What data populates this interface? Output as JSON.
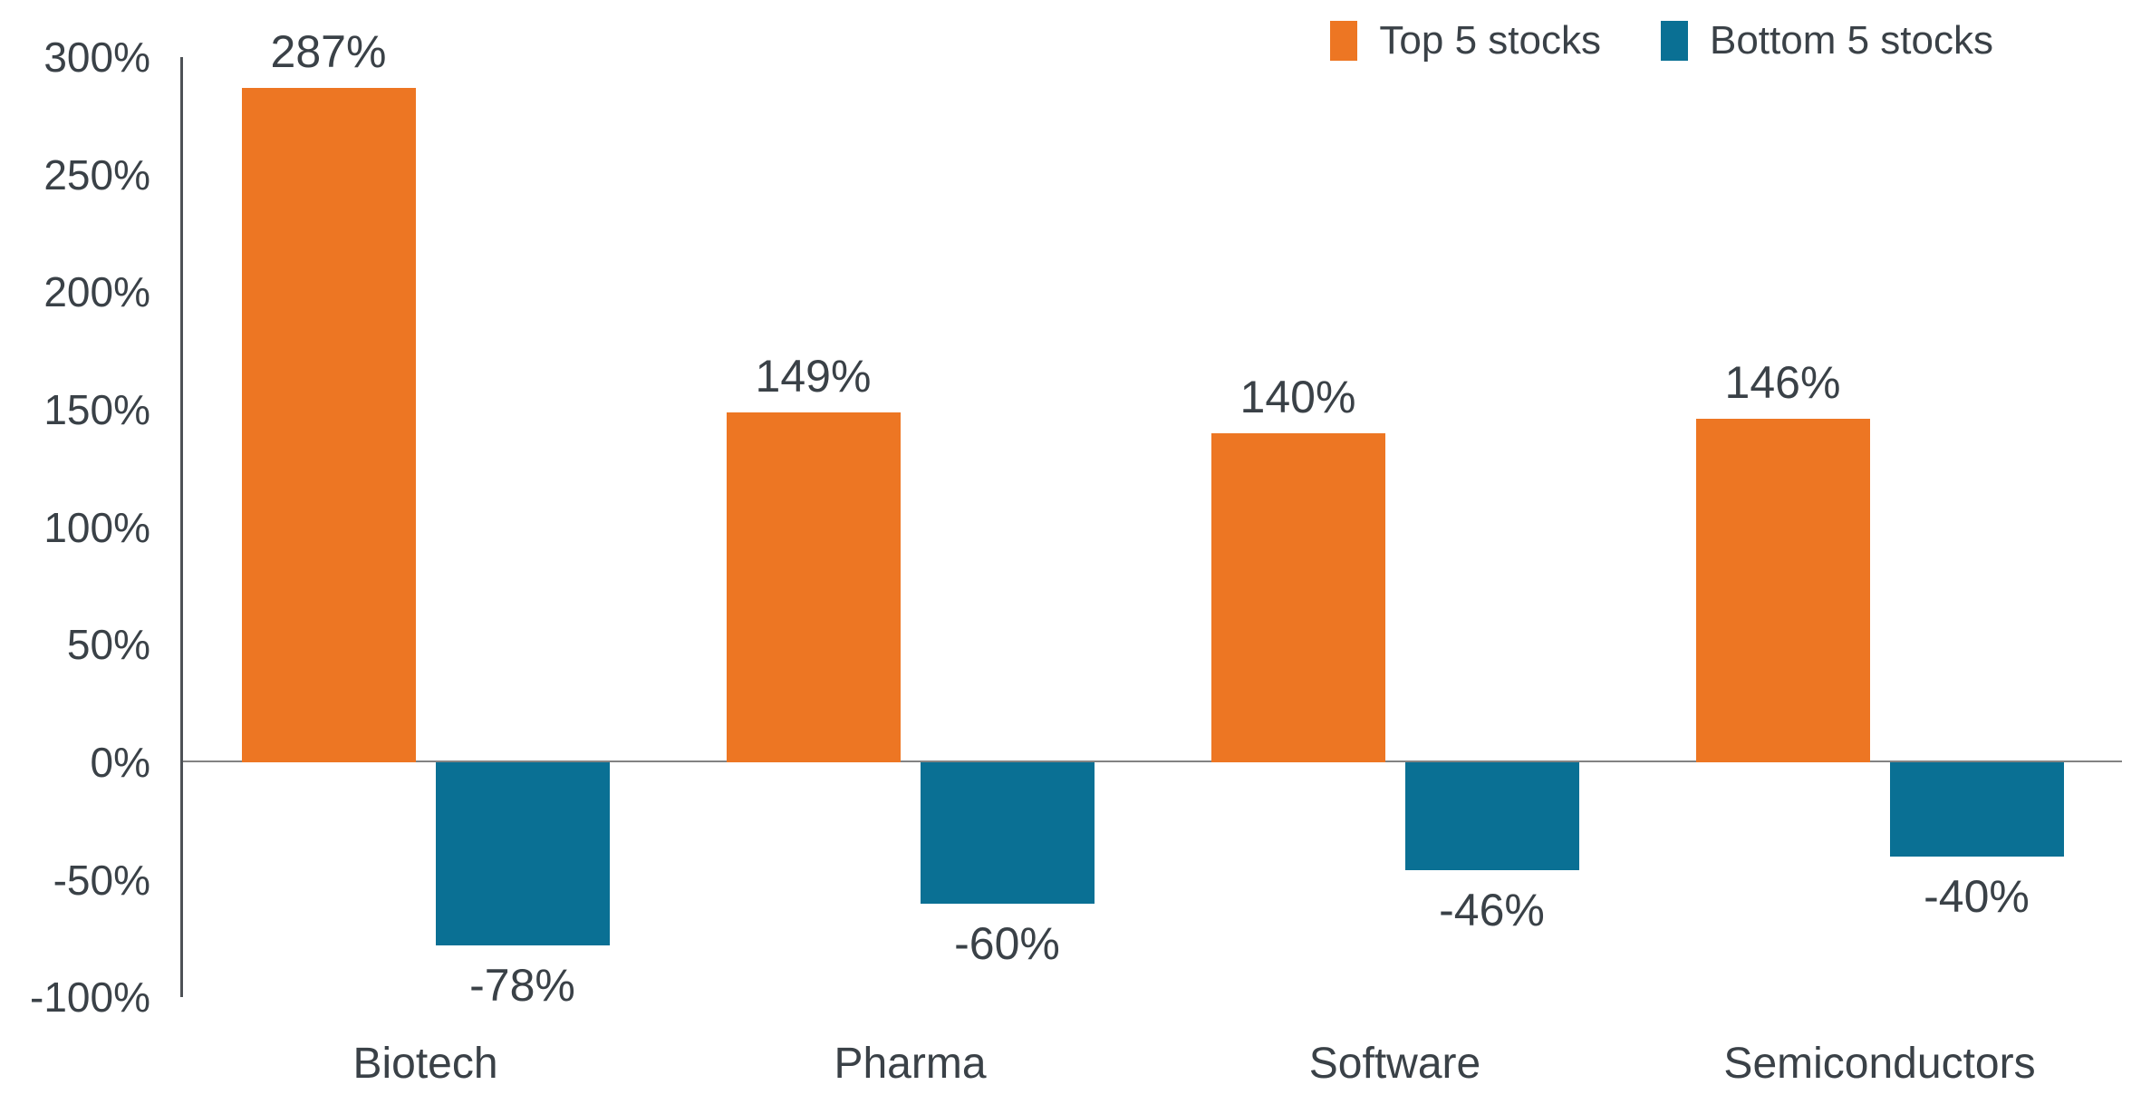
{
  "chart_data": {
    "type": "bar",
    "categories": [
      "Biotech",
      "Pharma",
      "Software",
      "Semiconductors"
    ],
    "series": [
      {
        "name": "Top 5 stocks",
        "color": "#ED7623",
        "values": [
          287,
          149,
          140,
          146
        ]
      },
      {
        "name": "Bottom 5 stocks",
        "color": "#0A7094",
        "values": [
          -78,
          -60,
          -46,
          -40
        ]
      }
    ],
    "data_labels": [
      "287%",
      "-78%",
      "149%",
      "-60%",
      "140%",
      "-46%",
      "146%",
      "-40%"
    ],
    "value_suffix": "%",
    "ylim": [
      -100,
      300
    ],
    "ytick_step": 50,
    "ytick_labels": [
      "-100%",
      "-50%",
      "0%",
      "50%",
      "100%",
      "150%",
      "200%",
      "250%",
      "300%"
    ],
    "grid": false,
    "legend_position": "top-right",
    "title": "",
    "xlabel": "",
    "ylabel": ""
  },
  "colors": {
    "text": "#3A4147",
    "axis_line": "#4D5156",
    "zero_line": "#838383",
    "background": "#FFFFFF"
  }
}
